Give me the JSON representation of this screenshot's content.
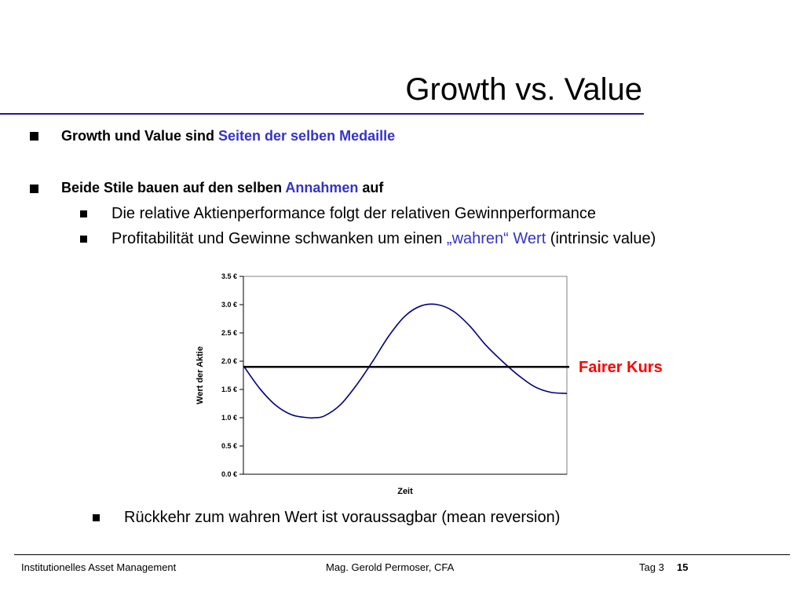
{
  "slide": {
    "title": "Growth vs. Value",
    "bullets": [
      {
        "text_a": "Growth und Value sind ",
        "text_b": "Seiten der selben Medaille"
      },
      {
        "text_a": "Beide Stile bauen auf den selben ",
        "text_b": "Annahmen",
        "text_c": " auf"
      }
    ],
    "sub_bullets": [
      {
        "text": "Die relative Aktienperformance folgt der relativen Gewinnperformance"
      },
      {
        "text_a": "Profitabilität und Gewinne schwanken um einen ",
        "text_b": "„wahren“ Wert",
        "text_c": " (intrinsic value)"
      }
    ],
    "final_bullet": "Rückkehr zum wahren Wert ist voraussagbar (mean reversion)",
    "fair_label": "Fairer Kurs"
  },
  "footer": {
    "left": "Institutionelles Asset Management",
    "center": "Mag. Gerold Permoser, CFA",
    "day": "Tag 3",
    "page": "15"
  },
  "colors": {
    "curve": "#000080",
    "fair_line": "#000000",
    "fair_label": "#ff0000",
    "accent": "#3333cc"
  },
  "chart_data": {
    "type": "line",
    "xlabel": "Zeit",
    "ylabel": "Wert der Aktie",
    "ylim": [
      0,
      3.5
    ],
    "yticks": [
      "0.0 €",
      "0.5 €",
      "1.0 €",
      "1.5 €",
      "2.0 €",
      "2.5 €",
      "3.0 €",
      "3.5 €"
    ],
    "yticks_values": [
      0,
      0.5,
      1.0,
      1.5,
      2.0,
      2.5,
      3.0,
      3.5
    ],
    "xlim": [
      0,
      1
    ],
    "series": [
      {
        "values_x": [
          0,
          0.05,
          0.1,
          0.15,
          0.2,
          0.22,
          0.25,
          0.3,
          0.35,
          0.4,
          0.45,
          0.5,
          0.55,
          0.6,
          0.65,
          0.7,
          0.75,
          0.8,
          0.85,
          0.9,
          0.95,
          1.0
        ],
        "values_y": [
          1.92,
          1.52,
          1.22,
          1.05,
          1.0,
          1.0,
          1.03,
          1.23,
          1.58,
          2.0,
          2.45,
          2.8,
          2.98,
          3.0,
          2.88,
          2.62,
          2.28,
          2.0,
          1.75,
          1.55,
          1.45,
          1.43
        ]
      }
    ],
    "reference_line": {
      "y": 1.9
    }
  }
}
